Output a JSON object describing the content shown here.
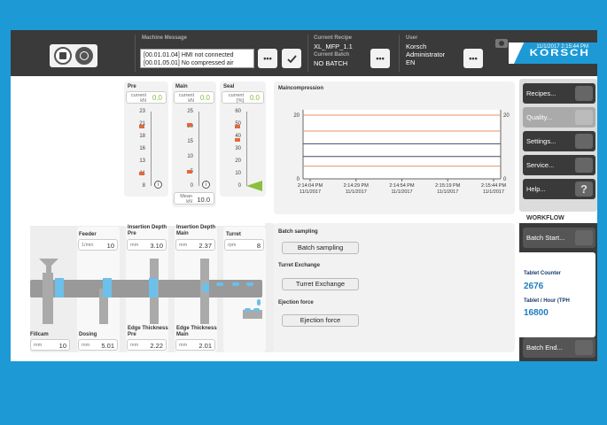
{
  "header": {
    "machine_message_label": "Machine Message",
    "messages": [
      "[00.01.01.04] HMI not connected",
      "[00.01.05.01] No compressed air"
    ],
    "more_label": "•••",
    "current_recipe_label": "Current Recipe",
    "current_recipe": "XL_MFP_1.1",
    "current_batch_label": "Current Batch",
    "current_batch": "NO BATCH",
    "user_label": "User",
    "user_name": "Korsch",
    "user_role": "Administrator",
    "user_lang": "EN",
    "datetime": "11/1/2017 2:15:44 PM",
    "brand": "KORSCH"
  },
  "gauges": [
    {
      "title": "Pre",
      "current_label": "current kN",
      "value": "0.0",
      "ticks": [
        "23",
        "21",
        "18",
        "16",
        "13",
        "11",
        "8"
      ]
    },
    {
      "title": "Main",
      "current_label": "current kN",
      "value": "0.0",
      "ticks": [
        "25",
        "20",
        "15",
        "10",
        "5",
        "0"
      ],
      "mean_label": "Mean kN",
      "mean_value": "10.0"
    },
    {
      "title": "Seal",
      "current_label": "current [%]",
      "value": "0.0",
      "ticks": [
        "60",
        "50",
        "40",
        "30",
        "20",
        "10",
        "0"
      ]
    }
  ],
  "chart_data": {
    "type": "line",
    "title": "Maincompression",
    "ylim": [
      0,
      20
    ],
    "yticks_left": [
      "20",
      "0"
    ],
    "yticks_right": [
      "20",
      "0"
    ],
    "x_ticks": [
      "2:14:04 PM\n11/1/2017",
      "2:14:29 PM\n11/1/2017",
      "2:14:54 PM\n11/1/2017",
      "2:15:19 PM\n11/1/2017",
      "2:15:44 PM\n11/1/2017"
    ],
    "series": [],
    "reference_lines": [
      {
        "y": 20,
        "color": "#e9906a"
      },
      {
        "y": 15,
        "color": "#e9906a"
      },
      {
        "y": 11,
        "color": "#4a4a6a"
      },
      {
        "y": 7,
        "color": "#4a4a6a"
      },
      {
        "y": 4,
        "color": "#e9906a"
      }
    ]
  },
  "machine": {
    "feeder": {
      "label": "Feeder",
      "unit": "1/min",
      "value": "10"
    },
    "insertion_pre": {
      "label": "Insertion Depth Pre",
      "unit": "mm",
      "value": "3.10"
    },
    "insertion_main": {
      "label": "Insertion Depth Main",
      "unit": "mm",
      "value": "2.37"
    },
    "turret": {
      "label": "Turret",
      "unit": "rpm",
      "value": "8"
    },
    "fillcam": {
      "label": "Fillcam",
      "unit": "mm",
      "value": "10"
    },
    "dosing": {
      "label": "Dosing",
      "unit": "mm",
      "value": "5.01"
    },
    "edge_pre": {
      "label": "Edge Thickness Pre",
      "unit": "mm",
      "value": "2.22"
    },
    "edge_main": {
      "label": "Edge Thickness Main",
      "unit": "mm",
      "value": "2.01"
    }
  },
  "actions": {
    "batch_sampling_title": "Batch sampling",
    "batch_sampling_btn": "Batch sampling",
    "turret_exchange_title": "Turret Exchange",
    "turret_exchange_btn": "Turret Exchange",
    "ejection_title": "Ejection force",
    "ejection_btn": "Ejection force"
  },
  "sidebar": {
    "items": [
      "Recipes...",
      "Quality...",
      "Settings...",
      "Service...",
      "Help..."
    ],
    "workflow_label": "WORKFLOW",
    "batch_start": "Batch Start...",
    "tablet_counter_label": "Tablet Counter",
    "tablet_counter": "2676",
    "tablet_hour_label": "Tablet / Hour (TPH",
    "tablet_hour": "16800",
    "batch_end": "Batch End..."
  }
}
